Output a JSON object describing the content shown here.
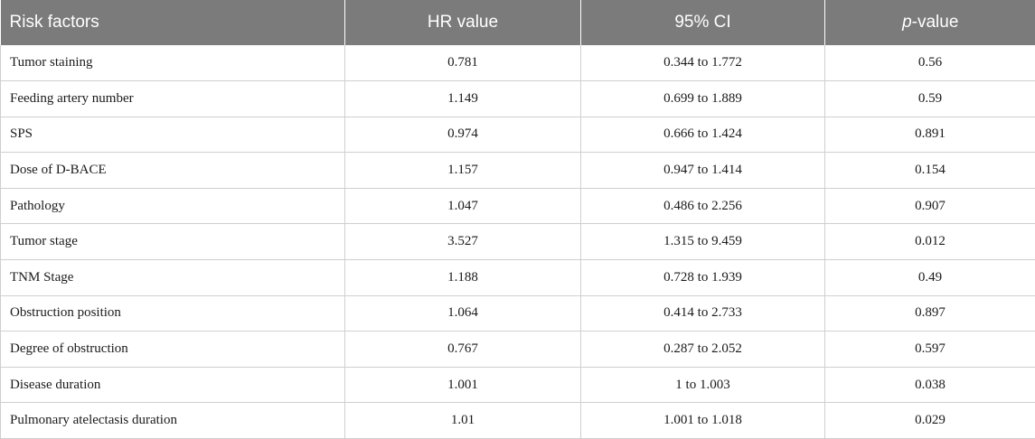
{
  "table": {
    "headers": {
      "risk_factors": "Risk factors",
      "hr_value": "HR value",
      "ci": "95% CI",
      "p_italic": "p",
      "p_rest": "-value"
    },
    "rows": [
      {
        "factor": "Tumor staining",
        "hr": "0.781",
        "ci": "0.344 to 1.772",
        "p": "0.56"
      },
      {
        "factor": "Feeding artery number",
        "hr": "1.149",
        "ci": "0.699 to 1.889",
        "p": "0.59"
      },
      {
        "factor": "SPS",
        "hr": "0.974",
        "ci": "0.666 to 1.424",
        "p": "0.891"
      },
      {
        "factor": "Dose of D-BACE",
        "hr": "1.157",
        "ci": "0.947 to 1.414",
        "p": "0.154"
      },
      {
        "factor": "Pathology",
        "hr": "1.047",
        "ci": "0.486 to 2.256",
        "p": "0.907"
      },
      {
        "factor": "Tumor stage",
        "hr": "3.527",
        "ci": "1.315 to 9.459",
        "p": "0.012"
      },
      {
        "factor": "TNM Stage",
        "hr": "1.188",
        "ci": "0.728 to 1.939",
        "p": "0.49"
      },
      {
        "factor": "Obstruction position",
        "hr": "1.064",
        "ci": "0.414 to 2.733",
        "p": "0.897"
      },
      {
        "factor": "Degree of obstruction",
        "hr": "0.767",
        "ci": "0.287 to 2.052",
        "p": "0.597"
      },
      {
        "factor": "Disease duration",
        "hr": "1.001",
        "ci": "1 to 1.003",
        "p": "0.038"
      },
      {
        "factor": "Pulmonary atelectasis duration",
        "hr": "1.01",
        "ci": "1.001 to 1.018",
        "p": "0.029"
      }
    ]
  }
}
